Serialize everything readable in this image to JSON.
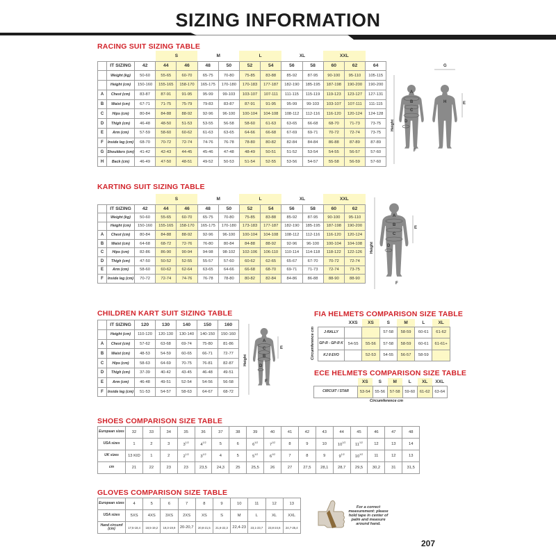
{
  "page_title": "SIZING INFORMATION",
  "page_number": "207",
  "colors": {
    "accent_red": "#d2232a",
    "highlight": "#fdf8c6",
    "silhouette": "#8a8a8a"
  },
  "racing": {
    "title": "RACING SUIT SIZING TABLE",
    "header_label": "IT SIZING",
    "groups": [
      {
        "label": "",
        "span": 1,
        "hl": false
      },
      {
        "label": "S",
        "span": 2,
        "hl": true
      },
      {
        "label": "M",
        "span": 2,
        "hl": false
      },
      {
        "label": "L",
        "span": 2,
        "hl": true
      },
      {
        "label": "XL",
        "span": 2,
        "hl": false
      },
      {
        "label": "XXL",
        "span": 2,
        "hl": true
      },
      {
        "label": "",
        "span": 1,
        "hl": false
      }
    ],
    "sizes": [
      "42",
      "44",
      "46",
      "48",
      "50",
      "52",
      "54",
      "56",
      "58",
      "60",
      "62",
      "64"
    ],
    "highlight_cols": [
      1,
      2,
      5,
      6,
      9,
      10
    ],
    "rows": [
      {
        "letter": "",
        "label": "Weight (kg)",
        "values": [
          "50-60",
          "55-65",
          "60-70",
          "65-75",
          "70-80",
          "75-85",
          "83-88",
          "85-92",
          "87-95",
          "90-100",
          "95-110",
          "105-115"
        ]
      },
      {
        "letter": "",
        "label": "Height (cm)",
        "values": [
          "150-160",
          "155-165",
          "158-170",
          "165-175",
          "170-180",
          "170-183",
          "177-187",
          "182-190",
          "185-195",
          "187-198",
          "190-200",
          "190-200"
        ]
      },
      {
        "letter": "A",
        "label": "Chest (cm)",
        "values": [
          "83-87",
          "87-91",
          "91-95",
          "95-99",
          "99-103",
          "103-107",
          "107-111",
          "111-115",
          "115-119",
          "119-123",
          "123-127",
          "127-131"
        ]
      },
      {
        "letter": "B",
        "label": "Waist (cm)",
        "values": [
          "67-71",
          "71-75",
          "75-79",
          "79-83",
          "83-87",
          "87-91",
          "91-95",
          "95-99",
          "99-103",
          "103-107",
          "107-111",
          "111-115"
        ]
      },
      {
        "letter": "C",
        "label": "Hips (cm)",
        "values": [
          "80-84",
          "84-88",
          "88-92",
          "92-96",
          "96-100",
          "100-104",
          "104-108",
          "108-112",
          "112-116",
          "116-120",
          "120-124",
          "124-128"
        ]
      },
      {
        "letter": "D",
        "label": "Thigh (cm)",
        "values": [
          "46-48",
          "48-50",
          "51-53",
          "53-55",
          "56-58",
          "58-60",
          "61-63",
          "63-65",
          "66-68",
          "68-70",
          "71-73",
          "73-75"
        ]
      },
      {
        "letter": "E",
        "label": "Arm (cm)",
        "values": [
          "57-59",
          "58-60",
          "60-62",
          "61-63",
          "63-65",
          "64-66",
          "66-68",
          "67-69",
          "69-71",
          "70-72",
          "72-74",
          "73-75"
        ]
      },
      {
        "letter": "F",
        "label": "Inside leg (cm)",
        "values": [
          "68-70",
          "70-72",
          "72-74",
          "74-76",
          "76-78",
          "78-80",
          "80-82",
          "82-84",
          "84-84",
          "86-88",
          "87-89",
          "87-89"
        ]
      },
      {
        "letter": "G",
        "label": "Shoulders (cm)",
        "values": [
          "41-42",
          "42-43",
          "44-45",
          "45-46",
          "47-48",
          "48-49",
          "50-51",
          "51-52",
          "53-54",
          "54-55",
          "56-57",
          "57-60"
        ]
      },
      {
        "letter": "H",
        "label": "Back (cm)",
        "values": [
          "46-49",
          "47-50",
          "48-51",
          "49-52",
          "50-53",
          "51-54",
          "52-55",
          "53-56",
          "54-57",
          "55-58",
          "56-59",
          "57-60"
        ]
      }
    ],
    "figure_labels": {
      "a": "A",
      "b": "B",
      "c": "C",
      "d": "D",
      "e": "E",
      "f": "F",
      "g": "G",
      "h": "H",
      "height": "Height"
    }
  },
  "karting": {
    "title": "KARTING SUIT SIZING TABLE",
    "header_label": "IT SIZING",
    "groups": [
      {
        "label": "",
        "span": 1,
        "hl": false
      },
      {
        "label": "S",
        "span": 2,
        "hl": true
      },
      {
        "label": "M",
        "span": 2,
        "hl": false
      },
      {
        "label": "L",
        "span": 2,
        "hl": true
      },
      {
        "label": "XL",
        "span": 2,
        "hl": false
      },
      {
        "label": "XXL",
        "span": 2,
        "hl": true
      }
    ],
    "sizes": [
      "42",
      "44",
      "46",
      "48",
      "50",
      "52",
      "54",
      "56",
      "58",
      "60",
      "62"
    ],
    "highlight_cols": [
      1,
      2,
      5,
      6,
      9,
      10
    ],
    "rows": [
      {
        "letter": "",
        "label": "Weight (kg)",
        "values": [
          "50-60",
          "55-65",
          "60-70",
          "65-75",
          "70-80",
          "75-85",
          "83-88",
          "85-92",
          "87-95",
          "90-100",
          "95-110"
        ]
      },
      {
        "letter": "",
        "label": "Height (cm)",
        "values": [
          "150-160",
          "155-165",
          "158-170",
          "165-175",
          "170-180",
          "173-183",
          "177-187",
          "182-190",
          "185-195",
          "187-198",
          "190-200"
        ]
      },
      {
        "letter": "A",
        "label": "Chest (cm)",
        "values": [
          "80-84",
          "84-88",
          "88-92",
          "92-96",
          "96-100",
          "100-104",
          "104-108",
          "108-112",
          "112-116",
          "116-120",
          "120-124"
        ]
      },
      {
        "letter": "B",
        "label": "Waist (cm)",
        "values": [
          "64-68",
          "68-72",
          "72-76",
          "76-80",
          "80-84",
          "84-88",
          "88-92",
          "92-96",
          "96-100",
          "100-104",
          "104-108"
        ]
      },
      {
        "letter": "C",
        "label": "Hips (cm)",
        "values": [
          "82-86",
          "86-90",
          "90-94",
          "94-98",
          "98-102",
          "102-106",
          "106-110",
          "110-114",
          "114-118",
          "118-122",
          "122-126"
        ]
      },
      {
        "letter": "D",
        "label": "Thigh (cm)",
        "values": [
          "47-50",
          "50-52",
          "52-55",
          "55-57",
          "57-60",
          "60-62",
          "62-65",
          "65-67",
          "67-70",
          "70-72",
          "72-74"
        ]
      },
      {
        "letter": "E",
        "label": "Arm (cm)",
        "values": [
          "58-60",
          "60-62",
          "62-64",
          "63-65",
          "64-66",
          "66-68",
          "68-70",
          "69-71",
          "71-73",
          "72-74",
          "73-75"
        ]
      },
      {
        "letter": "F",
        "label": "Inside leg (cm)",
        "values": [
          "70-72",
          "72-74",
          "74-76",
          "76-78",
          "78-80",
          "80-82",
          "82-84",
          "84-86",
          "86-88",
          "88-90",
          "88-90"
        ]
      }
    ],
    "figure_labels": {
      "a": "A",
      "b": "B",
      "c": "C",
      "d": "D",
      "e": "E",
      "f": "F",
      "height": "Height"
    }
  },
  "children": {
    "title": "CHILDREN KART SUIT SIZING TABLE",
    "header_label": "IT SIZING",
    "sizes": [
      "120",
      "130",
      "140",
      "150",
      "160"
    ],
    "highlight_cols": [],
    "rows": [
      {
        "letter": "",
        "label": "Height (cm)",
        "values": [
          "110-120",
          "120-130",
          "130-140",
          "140-150",
          "150-160"
        ]
      },
      {
        "letter": "A",
        "label": "Chest (cm)",
        "values": [
          "57-62",
          "63-68",
          "69-74",
          "75-80",
          "81-86"
        ]
      },
      {
        "letter": "B",
        "label": "Waist (cm)",
        "values": [
          "48-53",
          "54-59",
          "60-65",
          "66-71",
          "72-77"
        ]
      },
      {
        "letter": "C",
        "label": "Hips (cm)",
        "values": [
          "58-63",
          "64-69",
          "70-75",
          "76-81",
          "82-87"
        ]
      },
      {
        "letter": "D",
        "label": "Thigh (cm)",
        "values": [
          "37-39",
          "40-42",
          "43-45",
          "46-48",
          "49-51"
        ]
      },
      {
        "letter": "E",
        "label": "Arm (cm)",
        "values": [
          "46-48",
          "49-51",
          "52-54",
          "54-56",
          "56-58"
        ]
      },
      {
        "letter": "F",
        "label": "Inside leg (cm)",
        "values": [
          "51-53",
          "54-57",
          "58-63",
          "64-67",
          "68-72"
        ]
      }
    ],
    "figure_labels": {
      "a": "A",
      "b": "B",
      "c": "C",
      "d": "D",
      "e": "E",
      "f": "F",
      "height": "Height"
    }
  },
  "fia_helmets": {
    "title": "FIA HELMETS COMPARISON SIZE TABLE",
    "axis_label": "Circumference cm",
    "sizes": [
      "XXS",
      "XS",
      "S",
      "M",
      "L",
      "XL"
    ],
    "highlight_cols": [
      1,
      3,
      5
    ],
    "rows": [
      {
        "label": "J-RALLY",
        "values": [
          "",
          "",
          "57-58",
          "58-59",
          "60-61",
          "61-62"
        ]
      },
      {
        "label": "GP-R - GP-R K",
        "values": [
          "54-55",
          "55-56",
          "57-58",
          "58-59",
          "60-61",
          "61-61+"
        ]
      },
      {
        "label": "KJ 8 EVO",
        "values": [
          "",
          "52-53",
          "54-55",
          "56-57",
          "58-59",
          ""
        ]
      }
    ]
  },
  "ece_helmets": {
    "title": "ECE HELMETS COMPARISON SIZE TABLE",
    "axis_label": "Circumference cm",
    "sizes": [
      "XS",
      "S",
      "M",
      "L",
      "XL",
      "XXL"
    ],
    "highlight_cols": [
      0,
      2,
      4
    ],
    "rows": [
      {
        "label": "CIRCUIT / STAR",
        "values": [
          "53-54",
          "55-56",
          "57-58",
          "59-60",
          "61-62",
          "63-64"
        ]
      }
    ]
  },
  "shoes": {
    "title": "SHOES COMPARISON SIZE TABLE",
    "rows": [
      {
        "label": "European sizes",
        "values": [
          "32",
          "33",
          "34",
          "35",
          "36",
          "37",
          "38",
          "39",
          "40",
          "41",
          "42",
          "43",
          "44",
          "45",
          "46",
          "47",
          "48"
        ]
      },
      {
        "label": "USA sizes",
        "values": [
          "1",
          "2",
          "3",
          "3 1/2",
          "4 1/2",
          "5",
          "6",
          "6 1/2",
          "7 1/2",
          "8",
          "9",
          "10",
          "10 1/2",
          "11 1/2",
          "12",
          "13",
          "14"
        ]
      },
      {
        "label": "UK sizes",
        "values": [
          "13 KID",
          "1",
          "2",
          "2 1/2",
          "3 1/2",
          "4",
          "5",
          "5 1/2",
          "6 1/2",
          "7",
          "8",
          "9",
          "9 1/2",
          "10 1/2",
          "11",
          "12",
          "13"
        ]
      },
      {
        "label": "cm",
        "values": [
          "21",
          "22",
          "23",
          "23",
          "23,5",
          "24,3",
          "25",
          "25,5",
          "26",
          "27",
          "27,5",
          "28,1",
          "28,7",
          "29,5",
          "30,2",
          "31",
          "31,5"
        ]
      }
    ]
  },
  "gloves": {
    "title": "GLOVES COMPARISON SIZE TABLE",
    "rows": [
      {
        "label": "European sizes",
        "values": [
          "4",
          "5",
          "6",
          "7",
          "8",
          "9",
          "10",
          "11",
          "12",
          "13"
        ]
      },
      {
        "label": "USA sizes",
        "values": [
          "5XS",
          "4XS",
          "3XS",
          "2XS",
          "XS",
          "S",
          "M",
          "L",
          "XL",
          "XXL"
        ]
      },
      {
        "label": "Hand circumf (cm)",
        "values": [
          "17,5-18,4",
          "18,5-19,2",
          "19,3-19,9",
          "20-20,7",
          "20,8-21,5",
          "21,6-22,3",
          "22,4-23",
          "23,1-23,7",
          "23,8-24,6",
          "24,7-25,4"
        ]
      }
    ],
    "note": "For a correct measurement: please hold tape in center of palm and measure around hand."
  }
}
